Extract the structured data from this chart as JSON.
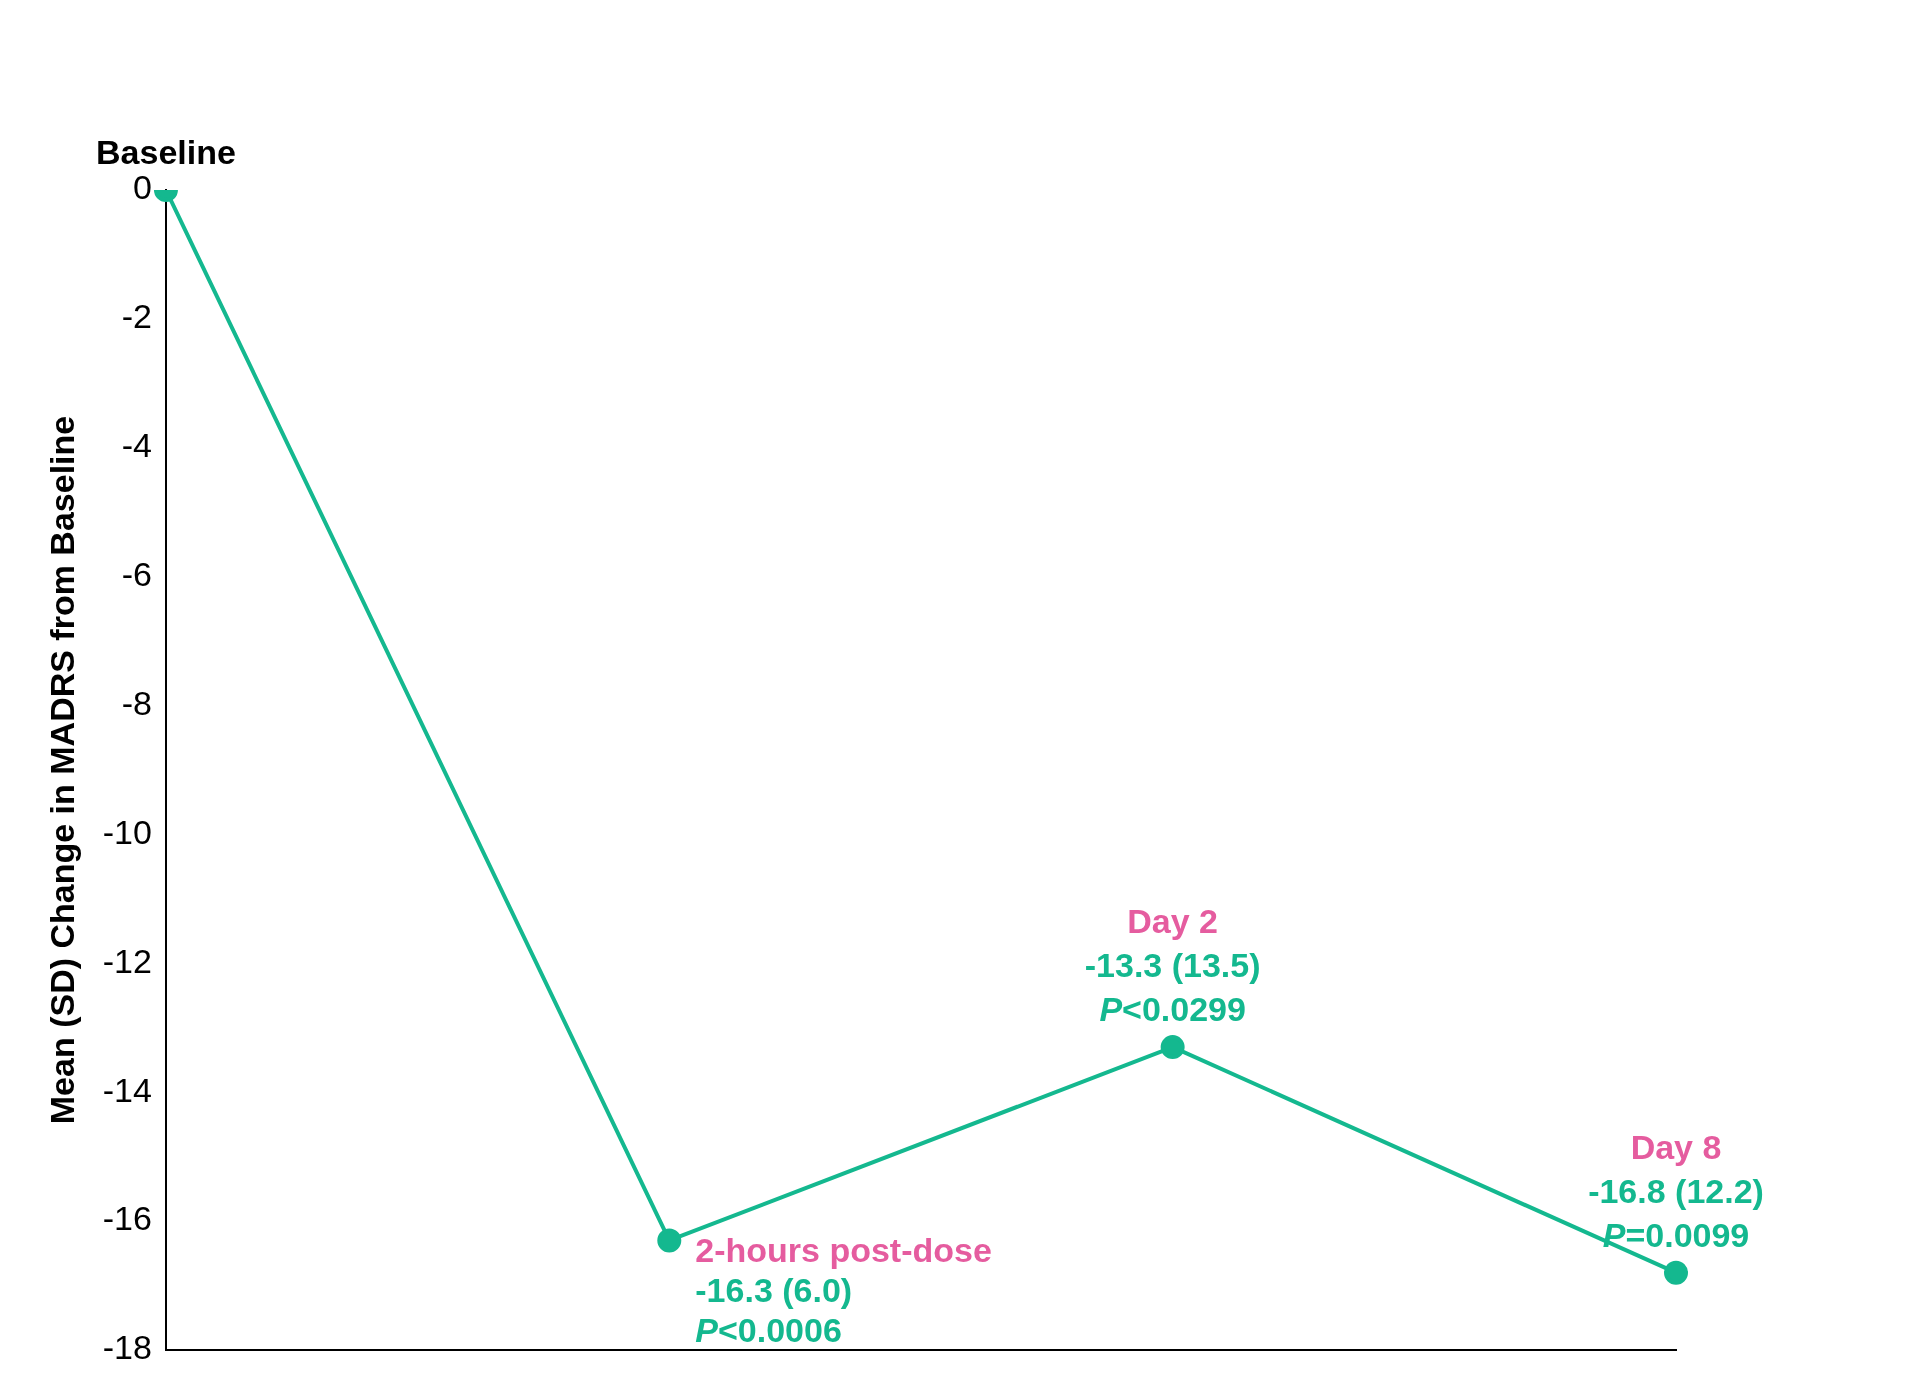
{
  "chart_data": {
    "type": "line",
    "ylabel": "Mean (SD) Change in MADRS from Baseline",
    "categories": [
      "Baseline",
      "2-hours post-dose",
      "Day 2",
      "Day 8"
    ],
    "series": [
      {
        "color": "#14b88f",
        "values": [
          0,
          -16.3,
          -13.3,
          -16.8
        ],
        "value_labels": [
          null,
          "-16.3 (6.0)",
          "-13.3 (13.5)",
          "-16.8 (12.2)"
        ]
      }
    ],
    "annotations": [
      {
        "text": "P<0.0006",
        "x": "2-hours post-dose",
        "y": -16.3
      },
      {
        "text": "P<0.0299",
        "x": "Day 2",
        "y": -13.3
      },
      {
        "text": "P=0.0099",
        "x": "Day 8",
        "y": -16.8
      }
    ],
    "ylim": [
      -18,
      0
    ],
    "yticks": [
      0,
      -2,
      -4,
      -6,
      -8,
      -10,
      -12,
      -14,
      -16,
      -18
    ],
    "marker": "circle",
    "grid": false,
    "legend": false,
    "tick_labels": "y"
  }
}
